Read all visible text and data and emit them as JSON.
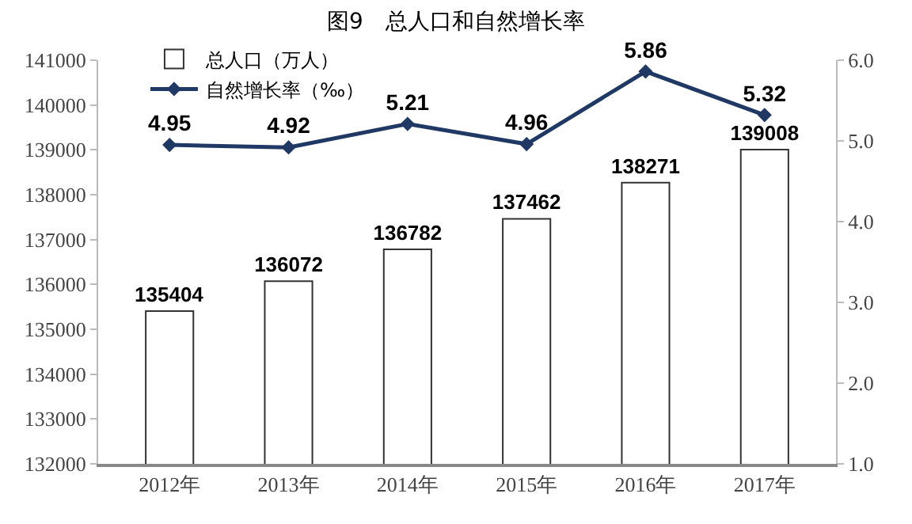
{
  "chart_data": {
    "type": "bar",
    "title": "图9　总人口和自然增长率",
    "categories": [
      "2012年",
      "2013年",
      "2014年",
      "2015年",
      "2016年",
      "2017年"
    ],
    "series": [
      {
        "name": "总人口（万人）",
        "color": "#ffffff",
        "values": [
          135404,
          136072,
          136782,
          137462,
          138271,
          139008
        ]
      },
      {
        "name": "自然增长率（‰）",
        "type": "line",
        "axis": "y2",
        "color": "#1f3864",
        "marker": "diamond",
        "values": [
          4.95,
          4.92,
          5.21,
          4.96,
          5.86,
          5.32
        ]
      }
    ],
    "ylim": [
      132000,
      141000
    ],
    "yticks": [
      132000,
      133000,
      134000,
      135000,
      136000,
      137000,
      138000,
      139000,
      140000,
      141000
    ],
    "y2lim": [
      1.0,
      6.0
    ],
    "y2ticks": [
      {
        "value": 1,
        "label": "1.0"
      },
      {
        "value": 2,
        "label": "2.0"
      },
      {
        "value": 3,
        "label": "3.0"
      },
      {
        "value": 4,
        "label": "4.0"
      },
      {
        "value": 5,
        "label": "5.0"
      },
      {
        "value": 6,
        "label": "6.0"
      }
    ],
    "data_labels": true,
    "grid": false,
    "legend": "top left"
  }
}
